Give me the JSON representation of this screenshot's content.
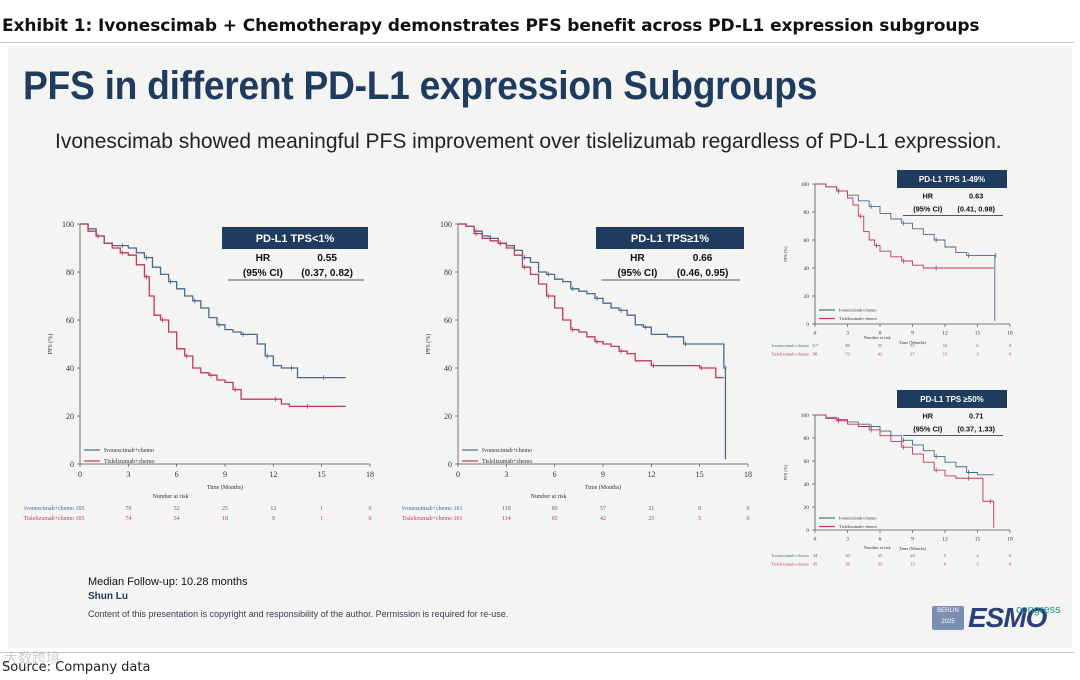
{
  "exhibit": {
    "title": "Exhibit 1: Ivonescimab + Chemotherapy demonstrates PFS benefit across PD-L1 expression subgroups",
    "source": "Source: Company data",
    "watermark": "大数跨境"
  },
  "slide": {
    "title": "PFS in different PD-L1 expression Subgroups",
    "subtitle": "Ivonescimab showed meaningful PFS improvement over tislelizumab regardless of PD-L1 expression.",
    "followup": "Median Follow-up: 10.28 months",
    "author": "Shun Lu",
    "copyright": "Content of this presentation is copyright and responsibility of the author. Permission is required for re-use.",
    "congress": {
      "city_top": "BERLIN",
      "city_year": "2025",
      "name": "ESMO",
      "tag": "congress"
    }
  },
  "colors": {
    "ivo": "#4a6a8c",
    "tis": "#c0395b",
    "hr_box": "#1f3c5f"
  },
  "chart_data": [
    {
      "type": "line",
      "subgroup": "PD-L1 TPS<1%",
      "hr_label": "HR",
      "ci_label": "(95% CI)",
      "hr": "0.55",
      "ci": "(0.37, 0.82)",
      "xlabel": "Time (Months)",
      "ylabel": "PFS (%)",
      "xlim": [
        0,
        18
      ],
      "ylim": [
        0,
        100
      ],
      "xticks": [
        0,
        3,
        6,
        9,
        12,
        15,
        18
      ],
      "yticks": [
        0,
        20,
        40,
        60,
        80,
        100
      ],
      "risk_title": "Number at risk",
      "risk_times": [
        0,
        3,
        6,
        9,
        12,
        15,
        18
      ],
      "series": [
        {
          "name": "Ivonescimab+chemo",
          "x": [
            0,
            0.5,
            1.0,
            1.5,
            2.0,
            2.5,
            3.0,
            3.5,
            4.0,
            4.5,
            5.0,
            5.5,
            6.0,
            6.5,
            7.0,
            7.5,
            8.0,
            8.5,
            9.0,
            9.5,
            10.0,
            10.5,
            11.0,
            11.5,
            12.0,
            12.5,
            13.0,
            13.5,
            14.0,
            15.0,
            16.5
          ],
          "y": [
            100,
            98,
            95,
            92,
            91,
            91,
            90,
            88,
            86,
            82,
            79,
            76,
            73,
            70,
            68,
            65,
            61,
            58,
            56,
            55,
            54,
            54,
            50,
            45,
            41,
            40,
            40,
            36,
            36,
            36,
            36
          ],
          "risk": [
            "105",
            "79",
            "52",
            "25",
            "12",
            "1",
            "0"
          ]
        },
        {
          "name": "Tislelizumab+chemo",
          "x": [
            0,
            0.5,
            1.0,
            1.5,
            2.0,
            2.5,
            3.0,
            3.5,
            4.0,
            4.3,
            4.6,
            5.0,
            5.5,
            6.0,
            6.5,
            7.0,
            7.5,
            8.0,
            8.5,
            9.0,
            9.5,
            10.0,
            11.0,
            12.0,
            12.5,
            13.0,
            14.0,
            15.0,
            16.5
          ],
          "y": [
            100,
            97,
            95,
            92,
            90,
            88,
            87,
            83,
            78,
            70,
            62,
            60,
            55,
            48,
            45,
            40,
            38,
            37,
            35,
            34,
            31,
            27,
            27,
            27,
            25,
            24,
            24,
            24,
            24
          ],
          "risk": [
            "105",
            "74",
            "34",
            "18",
            "9",
            "1",
            "0"
          ]
        }
      ]
    },
    {
      "type": "line",
      "subgroup": "PD-L1 TPS≥1%",
      "hr_label": "HR",
      "ci_label": "(95% CI)",
      "hr": "0.66",
      "ci": "(0.46, 0.95)",
      "xlabel": "Time (Months)",
      "ylabel": "PFS (%)",
      "xlim": [
        0,
        18
      ],
      "ylim": [
        0,
        100
      ],
      "xticks": [
        0,
        3,
        6,
        9,
        12,
        15,
        18
      ],
      "yticks": [
        0,
        20,
        40,
        60,
        80,
        100
      ],
      "risk_title": "Number at risk",
      "risk_times": [
        0,
        3,
        6,
        9,
        12,
        15,
        18
      ],
      "series": [
        {
          "name": "Ivonescimab+chemo",
          "x": [
            0,
            0.5,
            1.0,
            1.5,
            2.0,
            2.5,
            3.0,
            3.5,
            4.0,
            4.5,
            5.0,
            5.5,
            6.0,
            6.5,
            7.0,
            7.5,
            8.0,
            8.5,
            9.0,
            9.5,
            10.0,
            10.5,
            11.0,
            11.5,
            12.0,
            13.0,
            14.0,
            15.0,
            16.0,
            16.5,
            16.6
          ],
          "y": [
            100,
            99,
            97,
            95,
            94,
            92,
            91,
            89,
            86,
            84,
            80,
            79,
            77,
            76,
            73,
            72,
            71,
            69,
            67,
            65,
            64,
            62,
            58,
            57,
            54,
            53,
            50,
            50,
            50,
            40,
            2
          ],
          "risk": [
            "161",
            "118",
            "80",
            "57",
            "21",
            "8",
            "0"
          ]
        },
        {
          "name": "Tislelizumab+chemo",
          "x": [
            0,
            0.5,
            1.0,
            1.5,
            2.0,
            2.5,
            3.0,
            3.5,
            4.0,
            4.5,
            5.0,
            5.5,
            6.0,
            6.5,
            7.0,
            7.5,
            8.0,
            8.5,
            9.0,
            9.5,
            10.0,
            10.5,
            11.0,
            12.0,
            13.0,
            14.0,
            15.0,
            16.0,
            16.5
          ],
          "y": [
            100,
            99,
            96,
            94,
            93,
            92,
            90,
            87,
            82,
            79,
            75,
            70,
            65,
            60,
            56,
            55,
            53,
            51,
            50,
            49,
            47,
            46,
            43,
            41,
            41,
            41,
            40,
            36,
            36
          ],
          "risk": [
            "161",
            "114",
            "65",
            "42",
            "25",
            "5",
            "0"
          ]
        }
      ]
    },
    {
      "type": "line",
      "subgroup": "PD-L1 TPS 1-49%",
      "hr_label": "HR",
      "ci_label": "(95% CI)",
      "hr": "0.63",
      "ci": "(0.41, 0.98)",
      "xlabel": "Time (Months)",
      "ylabel": "PFS (%)",
      "xlim": [
        0,
        18
      ],
      "ylim": [
        0,
        100
      ],
      "xticks": [
        0,
        3,
        6,
        9,
        12,
        15,
        18
      ],
      "yticks": [
        0,
        20,
        40,
        60,
        80,
        100
      ],
      "risk_title": "Number at risk",
      "risk_times": [
        0,
        3,
        6,
        9,
        12,
        15,
        18
      ],
      "series": [
        {
          "name": "Ivonescimab+chemo",
          "x": [
            0,
            1,
            2,
            3,
            4,
            5,
            6,
            7,
            8,
            9,
            10,
            11,
            12,
            13,
            14,
            15,
            16,
            16.5,
            16.6
          ],
          "y": [
            100,
            98,
            95,
            92,
            88,
            84,
            79,
            75,
            72,
            68,
            64,
            60,
            55,
            51,
            49,
            49,
            49,
            49,
            2
          ],
          "risk": [
            "117",
            "88",
            "55",
            "37",
            "16",
            "6",
            "0"
          ]
        },
        {
          "name": "Tislelizumab+chemo",
          "x": [
            0,
            1,
            2,
            3,
            3.5,
            4,
            4.5,
            5,
            5.5,
            6,
            7,
            8,
            9,
            10,
            11,
            12,
            14,
            16.5
          ],
          "y": [
            100,
            98,
            95,
            90,
            85,
            77,
            66,
            60,
            56,
            52,
            48,
            45,
            42,
            40,
            40,
            40,
            40,
            40
          ],
          "risk": [
            "98",
            "73",
            "42",
            "27",
            "13",
            "3",
            "0"
          ]
        }
      ]
    },
    {
      "type": "line",
      "subgroup": "PD-L1 TPS ≥50%",
      "hr_label": "HR",
      "ci_label": "(95% CI)",
      "hr": "0.71",
      "ci": "(0.37, 1.33)",
      "xlabel": "Time (Months)",
      "ylabel": "PFS (%)",
      "xlim": [
        0,
        18
      ],
      "ylim": [
        0,
        100
      ],
      "xticks": [
        0,
        3,
        6,
        9,
        12,
        15,
        18
      ],
      "yticks": [
        0,
        20,
        40,
        60,
        80,
        100
      ],
      "risk_title": "Number at risk",
      "risk_times": [
        0,
        3,
        6,
        9,
        12,
        15,
        18
      ],
      "series": [
        {
          "name": "Ivonescimab+chemo",
          "x": [
            0,
            1,
            2,
            3,
            4,
            5,
            6,
            7,
            8,
            9,
            10,
            11,
            12,
            13,
            14,
            15,
            16,
            16.5
          ],
          "y": [
            100,
            98,
            96,
            94,
            92,
            90,
            86,
            82,
            78,
            74,
            69,
            64,
            59,
            55,
            50,
            48,
            48,
            48
          ],
          "risk": [
            "44",
            "30",
            "25",
            "20",
            "5",
            "2",
            "0"
          ]
        },
        {
          "name": "Tislelizumab+chemo",
          "x": [
            0,
            1,
            2,
            3,
            4,
            5,
            6,
            7,
            8,
            9,
            10,
            11,
            12,
            13,
            14,
            15,
            15.5,
            16,
            16.5
          ],
          "y": [
            100,
            97,
            95,
            92,
            90,
            87,
            82,
            77,
            72,
            66,
            59,
            52,
            47,
            45,
            45,
            45,
            25,
            25,
            2
          ],
          "risk": [
            "45",
            "38",
            "23",
            "15",
            "8",
            "2",
            "0"
          ]
        }
      ]
    }
  ]
}
